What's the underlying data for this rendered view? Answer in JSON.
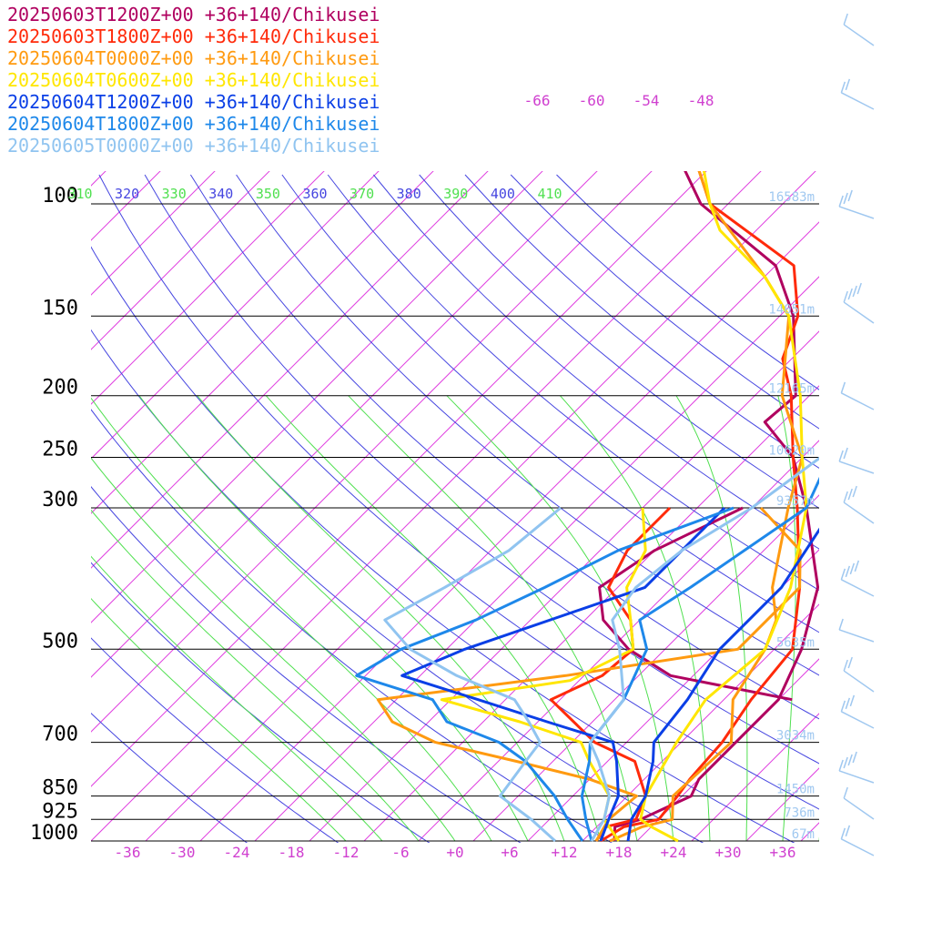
{
  "chart_data": {
    "type": "line",
    "title": "",
    "xlabel": "",
    "ylabel": "",
    "x_unit": "degC",
    "y_scale": "log",
    "xlim": [
      -40,
      40
    ],
    "ylim": [
      1000,
      100
    ],
    "grid": false,
    "legend_position": "top-left",
    "pressure_levels": [
      {
        "label": "100",
        "p": 100,
        "height": "16583m"
      },
      {
        "label": "150",
        "p": 150,
        "height": "14051m"
      },
      {
        "label": "200",
        "p": 200,
        "height": "12165m"
      },
      {
        "label": "250",
        "p": 250,
        "height": "10620m"
      },
      {
        "label": "300",
        "p": 300,
        "height": "9357m"
      },
      {
        "label": "500",
        "p": 500,
        "height": "5635m"
      },
      {
        "label": "700",
        "p": 700,
        "height": "3034m"
      },
      {
        "label": "850",
        "p": 850,
        "height": "1450m"
      },
      {
        "label": "925",
        "p": 925,
        "height": "736m"
      },
      {
        "label": "1000",
        "p": 1000,
        "height": "67m"
      }
    ],
    "x_ticks": [
      "-36",
      "-30",
      "-24",
      "-18",
      "-12",
      "-6",
      "+0",
      "+6",
      "+12",
      "+18",
      "+24",
      "+30",
      "+36"
    ],
    "isotherm_labels_top": [
      "-66",
      "-60",
      "-54",
      "-48"
    ],
    "theta_labels": [
      "310",
      "320",
      "330",
      "340",
      "350",
      "360",
      "370",
      "380",
      "390",
      "400",
      "410"
    ],
    "series": [
      {
        "name": "20250603T1200Z+00 +36+140/Chikusei",
        "color": "#b0005f",
        "temperature": [
          [
            1000,
            17.5
          ],
          [
            950,
            16
          ],
          [
            925,
            18
          ],
          [
            850,
            21
          ],
          [
            800,
            20
          ],
          [
            700,
            20
          ],
          [
            600,
            20
          ],
          [
            500,
            17
          ],
          [
            400,
            12
          ],
          [
            300,
            2
          ],
          [
            250,
            -5
          ],
          [
            220,
            -12
          ],
          [
            200,
            -11.5
          ],
          [
            150,
            -20.5
          ],
          [
            125,
            -28
          ],
          [
            100,
            -43
          ],
          [
            80,
            -53
          ],
          [
            70,
            -58
          ]
        ],
        "dewpoint": [
          [
            600,
            21.5
          ],
          [
            550,
            5.5
          ],
          [
            500,
            -2
          ],
          [
            450,
            -8
          ],
          [
            400,
            -12
          ],
          [
            350,
            -10
          ],
          [
            300,
            -5
          ]
        ]
      },
      {
        "name": "20250603T1800Z+00 +36+140/Chikusei",
        "color": "#ff2a0a",
        "temperature": [
          [
            1000,
            16
          ],
          [
            950,
            17
          ],
          [
            925,
            20
          ],
          [
            850,
            19.5
          ],
          [
            800,
            19
          ],
          [
            700,
            18.5
          ],
          [
            600,
            17
          ],
          [
            500,
            16
          ],
          [
            400,
            10
          ],
          [
            300,
            1
          ],
          [
            250,
            -5
          ],
          [
            200,
            -12
          ],
          [
            175,
            -17
          ],
          [
            150,
            -20
          ],
          [
            125,
            -26
          ],
          [
            100,
            -42
          ],
          [
            80,
            -51
          ],
          [
            70,
            -57
          ]
        ],
        "dewpoint": [
          [
            1000,
            15.5
          ],
          [
            950,
            15
          ],
          [
            925,
            17.5
          ],
          [
            850,
            16
          ],
          [
            750,
            11
          ],
          [
            700,
            4.5
          ],
          [
            600,
            -5
          ],
          [
            550,
            -2
          ],
          [
            500,
            -1.5
          ],
          [
            450,
            -5
          ],
          [
            400,
            -11
          ],
          [
            350,
            -13
          ],
          [
            300,
            -13
          ]
        ]
      },
      {
        "name": "20250604T0000Z+00 +36+140/Chikusei",
        "color": "#ff9a10",
        "temperature": [
          [
            1000,
            17
          ],
          [
            950,
            19
          ],
          [
            925,
            21.5
          ],
          [
            850,
            19
          ],
          [
            700,
            19.5
          ],
          [
            600,
            15
          ],
          [
            500,
            13
          ],
          [
            450,
            11
          ],
          [
            400,
            7
          ],
          [
            300,
            0
          ],
          [
            250,
            -4
          ],
          [
            200,
            -13
          ],
          [
            150,
            -21
          ],
          [
            130,
            -28
          ],
          [
            100,
            -42
          ],
          [
            80,
            -51
          ],
          [
            70,
            -57
          ]
        ],
        "dewpoint": [
          [
            1000,
            15.5
          ],
          [
            925,
            14.5
          ],
          [
            850,
            15
          ],
          [
            800,
            8
          ],
          [
            750,
            -2
          ],
          [
            700,
            -13
          ],
          [
            650,
            -20
          ],
          [
            600,
            -24
          ],
          [
            550,
            -6
          ],
          [
            500,
            10
          ],
          [
            400,
            10
          ],
          [
            350,
            6
          ],
          [
            300,
            -3
          ]
        ]
      },
      {
        "name": "20250604T0600Z+00 +36+140/Chikusei",
        "color": "#ffe600",
        "temperature": [
          [
            1000,
            24.5
          ],
          [
            950,
            20
          ],
          [
            925,
            18
          ],
          [
            850,
            16
          ],
          [
            700,
            13.5
          ],
          [
            600,
            12
          ],
          [
            500,
            13
          ],
          [
            400,
            9
          ],
          [
            300,
            2
          ],
          [
            250,
            -4
          ],
          [
            200,
            -11
          ],
          [
            150,
            -21
          ],
          [
            130,
            -28
          ],
          [
            110,
            -38
          ],
          [
            100,
            -42
          ],
          [
            80,
            -50
          ],
          [
            70,
            -57
          ]
        ],
        "dewpoint": [
          [
            1000,
            18
          ],
          [
            925,
            14
          ],
          [
            850,
            12
          ],
          [
            750,
            6
          ],
          [
            700,
            3
          ],
          [
            650,
            -6
          ],
          [
            600,
            -17
          ],
          [
            560,
            -5
          ],
          [
            500,
            -1.5
          ],
          [
            450,
            -5
          ],
          [
            400,
            -9
          ],
          [
            350,
            -11
          ],
          [
            300,
            -16
          ]
        ]
      },
      {
        "name": "20250604T1200Z+00 +36+140/Chikusei",
        "color": "#0a3fe6",
        "temperature": [
          [
            1000,
            19
          ],
          [
            925,
            17
          ],
          [
            850,
            16
          ],
          [
            750,
            13
          ],
          [
            700,
            11
          ],
          [
            600,
            10
          ],
          [
            500,
            8
          ],
          [
            400,
            8
          ],
          [
            300,
            5
          ],
          [
            200,
            -7
          ],
          [
            150,
            -13
          ],
          [
            125,
            -15
          ],
          [
            100,
            -19
          ],
          [
            80,
            -27
          ],
          [
            60,
            -40
          ],
          [
            50,
            -53
          ],
          [
            40,
            -58
          ]
        ],
        "dewpoint": [
          [
            1000,
            16
          ],
          [
            925,
            14.5
          ],
          [
            850,
            13
          ],
          [
            750,
            9
          ],
          [
            700,
            6.5
          ],
          [
            650,
            -3
          ],
          [
            600,
            -13
          ],
          [
            550,
            -24
          ],
          [
            500,
            -20
          ],
          [
            400,
            -7
          ],
          [
            300,
            -7
          ]
        ]
      },
      {
        "name": "20250604T1800Z+00 +36+140/Chikusei",
        "color": "#1e88ea",
        "temperature": [
          [
            1000,
            15
          ],
          [
            925,
            12
          ],
          [
            850,
            9
          ],
          [
            750,
            6
          ],
          [
            700,
            4
          ],
          [
            600,
            3
          ],
          [
            500,
            0
          ],
          [
            450,
            -4
          ],
          [
            400,
            -2
          ],
          [
            300,
            2
          ],
          [
            250,
            -1
          ],
          [
            200,
            -8
          ],
          [
            150,
            -14
          ],
          [
            125,
            -15
          ],
          [
            100,
            -19
          ],
          [
            80,
            -26
          ],
          [
            60,
            -40
          ],
          [
            50,
            -55
          ],
          [
            40,
            -60
          ]
        ],
        "dewpoint": [
          [
            1000,
            14
          ],
          [
            925,
            10
          ],
          [
            850,
            6
          ],
          [
            750,
            -1
          ],
          [
            700,
            -6
          ],
          [
            650,
            -14
          ],
          [
            600,
            -18
          ],
          [
            550,
            -29
          ],
          [
            500,
            -27
          ],
          [
            450,
            -22
          ],
          [
            400,
            -18
          ],
          [
            350,
            -14
          ],
          [
            300,
            -6
          ]
        ]
      },
      {
        "name": "20250605T0000Z+00 +36+140/Chikusei",
        "color": "#90c4f0",
        "temperature": [
          [
            1000,
            15
          ],
          [
            925,
            14
          ],
          [
            850,
            12
          ],
          [
            750,
            7
          ],
          [
            700,
            4
          ],
          [
            600,
            3
          ],
          [
            500,
            -3
          ],
          [
            450,
            -7
          ],
          [
            400,
            -8
          ],
          [
            350,
            -7
          ],
          [
            300,
            -4
          ],
          [
            250,
            -2
          ],
          [
            200,
            -8
          ],
          [
            150,
            -11
          ],
          [
            125,
            -15
          ],
          [
            100,
            -19
          ],
          [
            80,
            -25
          ],
          [
            65,
            -32
          ],
          [
            50,
            -50
          ],
          [
            40,
            -58
          ]
        ],
        "dewpoint": [
          [
            1000,
            11
          ],
          [
            925,
            6
          ],
          [
            850,
            0
          ],
          [
            750,
            -1
          ],
          [
            700,
            -1.5
          ],
          [
            650,
            -5
          ],
          [
            600,
            -9
          ],
          [
            550,
            -18
          ],
          [
            500,
            -26
          ],
          [
            450,
            -32
          ],
          [
            400,
            -29
          ],
          [
            350,
            -26
          ],
          [
            300,
            -25
          ]
        ]
      }
    ],
    "wind_barbs_visible": true
  }
}
